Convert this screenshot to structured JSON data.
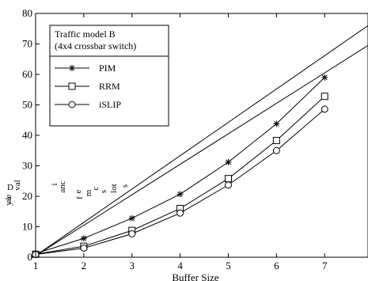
{
  "chart_data": {
    "type": "line",
    "title": "",
    "xlabel": "Buffer Size",
    "ylabel_fragments": [
      "D",
      "e",
      "l",
      "a",
      "y",
      "val",
      "i",
      "anc",
      "e",
      "f",
      "m",
      "c",
      "s",
      "lot",
      "s"
    ],
    "xlim": [
      1,
      7.9
    ],
    "ylim": [
      0,
      80
    ],
    "x_ticks": [
      1,
      2,
      3,
      4,
      5,
      6,
      7
    ],
    "y_ticks": [
      0,
      10,
      20,
      30,
      40,
      50,
      60,
      70,
      80
    ],
    "grid": false,
    "legend_position": "top-left",
    "legend_title": [
      "Traffic model B",
      "(4x4 crossbar switch)"
    ],
    "x": [
      1,
      2,
      3,
      4,
      5,
      6,
      7
    ],
    "series": [
      {
        "name": "PIM",
        "marker": "star",
        "values": [
          1.2,
          6.2,
          12.8,
          20.7,
          31.2,
          43.8,
          59.0
        ]
      },
      {
        "name": "RRM",
        "marker": "square",
        "values": [
          1.0,
          3.6,
          8.8,
          16.0,
          25.8,
          38.3,
          52.8
        ]
      },
      {
        "name": "iSLIP",
        "marker": "circle",
        "values": [
          0.9,
          3.0,
          7.7,
          14.5,
          23.7,
          35.0,
          48.6
        ]
      }
    ],
    "reference_lines": [
      {
        "from": [
          1,
          0.5
        ],
        "to": [
          7.9,
          76
        ]
      },
      {
        "from": [
          1,
          0.5
        ],
        "to": [
          7.9,
          69.5
        ]
      }
    ]
  }
}
